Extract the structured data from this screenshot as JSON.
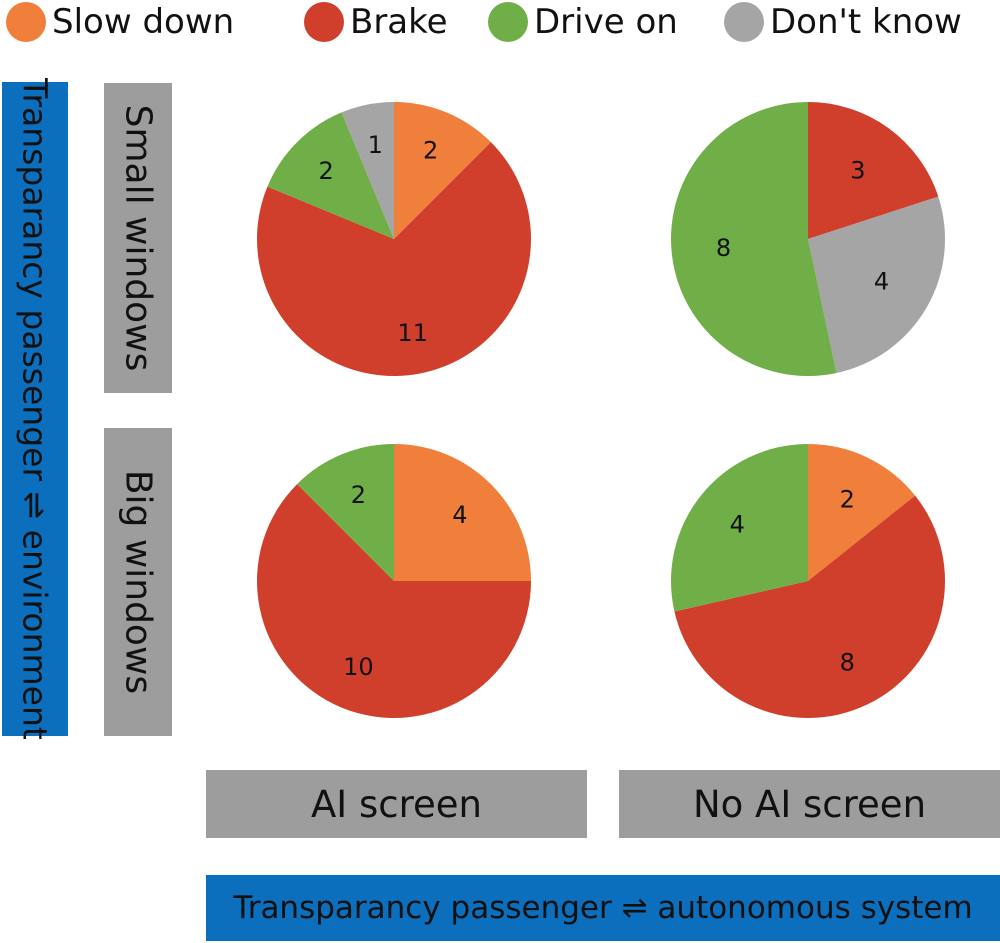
{
  "legend": [
    {
      "label": "Slow down",
      "color": "#f07f3b"
    },
    {
      "label": "Brake",
      "color": "#cf3f2b"
    },
    {
      "label": "Drive on",
      "color": "#70ae48"
    },
    {
      "label": "Don't know",
      "color": "#a5a5a5"
    }
  ],
  "y_axis": {
    "outer_label": "Transparancy passenger ⇌ environment",
    "rows": [
      "Small windows",
      "Big windows"
    ]
  },
  "x_axis": {
    "columns": [
      "AI screen",
      "No AI screen"
    ],
    "outer_label": "Transparancy passenger ⇌ autonomous system"
  },
  "chart_data": [
    {
      "type": "pie",
      "row": "Small windows",
      "column": "AI screen",
      "slices": [
        {
          "category": "Slow down",
          "value": 2
        },
        {
          "category": "Brake",
          "value": 11
        },
        {
          "category": "Drive on",
          "value": 2
        },
        {
          "category": "Don't know",
          "value": 1
        }
      ]
    },
    {
      "type": "pie",
      "row": "Small windows",
      "column": "No AI screen",
      "slices": [
        {
          "category": "Brake",
          "value": 3
        },
        {
          "category": "Don't know",
          "value": 4
        },
        {
          "category": "Drive on",
          "value": 8
        }
      ]
    },
    {
      "type": "pie",
      "row": "Big windows",
      "column": "AI screen",
      "slices": [
        {
          "category": "Slow down",
          "value": 4
        },
        {
          "category": "Brake",
          "value": 10
        },
        {
          "category": "Drive on",
          "value": 2
        }
      ]
    },
    {
      "type": "pie",
      "row": "Big windows",
      "column": "No AI screen",
      "slices": [
        {
          "category": "Slow down",
          "value": 2
        },
        {
          "category": "Brake",
          "value": 8
        },
        {
          "category": "Drive on",
          "value": 4
        }
      ]
    }
  ]
}
